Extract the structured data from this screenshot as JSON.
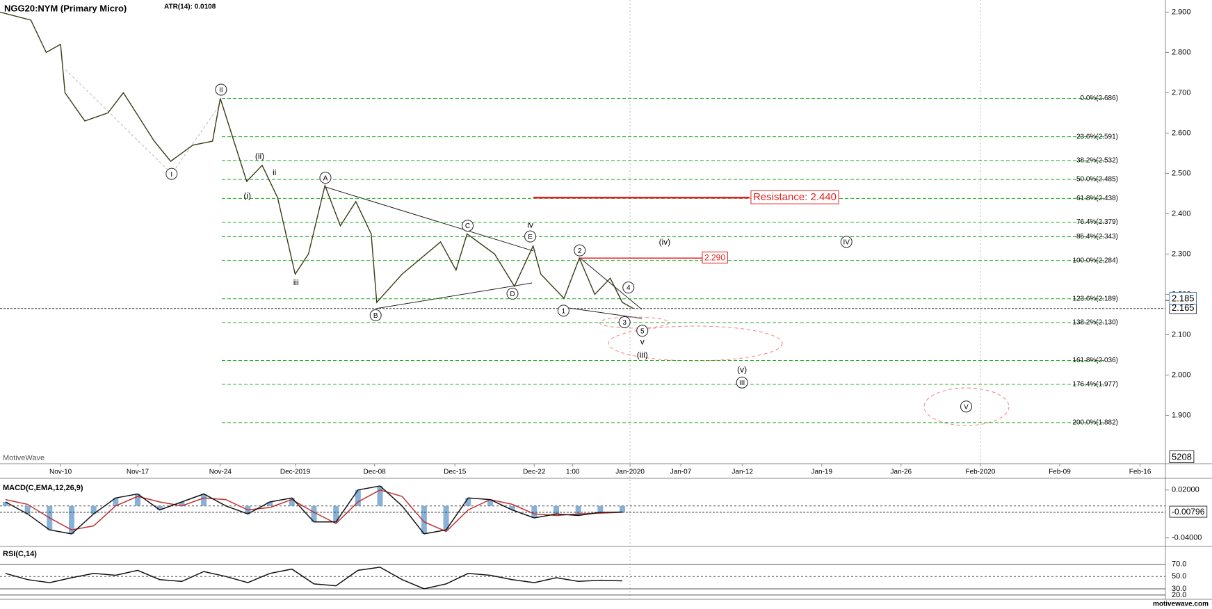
{
  "header": {
    "title": "NGG20:NYM (Primary Micro)",
    "atr": "ATR(14): 0.0108",
    "watermark": "MotiveWave",
    "footer": "motivewave.com"
  },
  "price_chart": {
    "type": "line",
    "color": "#3a3a14",
    "xlim": [
      -5.5,
      100.3
    ],
    "ylim": [
      1.78,
      2.93
    ],
    "xticks": [
      {
        "value": 0,
        "label": "Nov-10"
      },
      {
        "value": 7.0,
        "label": "Nov-17"
      },
      {
        "value": 14.5,
        "label": "Nov-24"
      },
      {
        "value": 21.3,
        "label": "Dec-2019"
      },
      {
        "value": 28.5,
        "label": "Dec-08"
      },
      {
        "value": 35.8,
        "label": "Dec-15"
      },
      {
        "value": 43.0,
        "label": "Dec-22"
      },
      {
        "value": 46.5,
        "label": "1:00"
      },
      {
        "value": 51.7,
        "label": "Jan-2020"
      },
      {
        "value": 56.3,
        "label": "Jan-07"
      },
      {
        "value": 61.9,
        "label": "Jan-12"
      },
      {
        "value": 69.1,
        "label": "Jan-19"
      },
      {
        "value": 76.3,
        "label": "Jan-26"
      },
      {
        "value": 83.5,
        "label": "Feb-2020"
      },
      {
        "value": 90.7,
        "label": "Feb-09"
      },
      {
        "value": 98.0,
        "label": "Feb-16"
      }
    ],
    "yticks": [
      {
        "value": 2.9,
        "label": "2.900"
      },
      {
        "value": 2.8,
        "label": "2.800"
      },
      {
        "value": 2.7,
        "label": "2.700"
      },
      {
        "value": 2.6,
        "label": "2.600"
      },
      {
        "value": 2.5,
        "label": "2.500"
      },
      {
        "value": 2.4,
        "label": "2.400"
      },
      {
        "value": 2.3,
        "label": "2.300"
      },
      {
        "value": 2.2,
        "label": "2.200"
      },
      {
        "value": 2.1,
        "label": "2.100"
      },
      {
        "value": 2.0,
        "label": "2.000"
      },
      {
        "value": 1.9,
        "label": "1.900"
      }
    ],
    "x": [
      -5.5,
      -2.7,
      -1.3,
      0,
      0.4,
      2.2,
      4.3,
      5.7,
      8.5,
      10.0,
      12.0,
      13.8,
      14.5,
      15.5,
      16.9,
      18.3,
      19.7,
      21.3,
      22.5,
      24.0,
      25.4,
      26.8,
      28.2,
      28.7,
      31.0,
      34.5,
      35.9,
      36.9,
      39.4,
      41.2,
      42.9,
      43.6,
      45.7,
      47.1,
      48.5,
      49.9,
      51.0,
      52.0
    ],
    "values": [
      2.9,
      2.88,
      2.8,
      2.82,
      2.7,
      2.63,
      2.65,
      2.7,
      2.58,
      2.53,
      2.57,
      2.58,
      2.686,
      2.6,
      2.48,
      2.52,
      2.44,
      2.25,
      2.3,
      2.47,
      2.37,
      2.43,
      2.35,
      2.18,
      2.25,
      2.33,
      2.26,
      2.35,
      2.3,
      2.22,
      2.32,
      2.25,
      2.19,
      2.29,
      2.2,
      2.24,
      2.18,
      2.165
    ],
    "last_price": {
      "value": 2.165,
      "label": "2.165"
    },
    "ask_price": {
      "value": 2.185,
      "label": "2.185"
    },
    "volume_label": "5208",
    "fib_color": "#22aa22",
    "fib_levels": [
      {
        "value": 2.686,
        "label": "0.0%(2.686)"
      },
      {
        "value": 2.591,
        "label": "23.6%(2.591)"
      },
      {
        "value": 2.532,
        "label": "38.2%(2.532)"
      },
      {
        "value": 2.485,
        "label": "50.0%(2.485)"
      },
      {
        "value": 2.438,
        "label": "61.8%(2.438)"
      },
      {
        "value": 2.379,
        "label": "76.4%(2.379)"
      },
      {
        "value": 2.343,
        "label": "85.4%(2.343)"
      },
      {
        "value": 2.284,
        "label": "100.0%(2.284)"
      },
      {
        "value": 2.189,
        "label": "123.6%(2.189)"
      },
      {
        "value": 2.13,
        "label": "138.2%(2.130)"
      },
      {
        "value": 2.036,
        "label": "161.8%(2.036)"
      },
      {
        "value": 1.977,
        "label": "176.4%(1.977)"
      },
      {
        "value": 1.882,
        "label": "200.0%(1.882)"
      }
    ],
    "resistance_color": "#e02020",
    "resistance": [
      {
        "value": 2.44,
        "label": "Resistance: 2.440"
      },
      {
        "value": 2.29,
        "label": "2.290"
      }
    ],
    "wave_labels": [
      {
        "text": "I",
        "circled": true
      },
      {
        "text": "II",
        "circled": true
      },
      {
        "text": "(ii)",
        "circled": false
      },
      {
        "text": "ii",
        "circled": false
      },
      {
        "text": "(i)",
        "circled": false
      },
      {
        "text": "iii",
        "circled": false
      },
      {
        "text": "A",
        "circled": true
      },
      {
        "text": "B",
        "circled": true
      },
      {
        "text": "C",
        "circled": true
      },
      {
        "text": "D",
        "circled": true
      },
      {
        "text": "iv",
        "circled": false
      },
      {
        "text": "E",
        "circled": true
      },
      {
        "text": "2",
        "circled": true
      },
      {
        "text": "1",
        "circled": true
      },
      {
        "text": "4",
        "circled": true
      },
      {
        "text": "3",
        "circled": true
      },
      {
        "text": "5",
        "circled": true
      },
      {
        "text": "v",
        "circled": false
      },
      {
        "text": "(iii)",
        "circled": false
      },
      {
        "text": "(iv)",
        "circled": false
      },
      {
        "text": "IV",
        "circled": true
      },
      {
        "text": "(v)",
        "circled": false
      },
      {
        "text": "III",
        "circled": true
      },
      {
        "text": "V",
        "circled": true
      }
    ]
  },
  "indicator_x": [
    -5,
    -3,
    -1,
    1,
    3,
    5,
    7,
    9,
    11,
    13,
    15,
    17,
    19,
    21,
    23,
    25,
    27,
    29,
    31,
    33,
    35,
    37,
    39,
    41,
    43,
    45,
    47,
    49,
    51
  ],
  "macd": {
    "label": "MACD(C,EMA,12,26,9)",
    "ylim": [
      -0.049,
      0.032
    ],
    "yticks": [
      {
        "value": 0.02,
        "label": "0.02000"
      },
      {
        "value": -0.04,
        "label": "-0.04000"
      }
    ],
    "last": {
      "value": -0.00796,
      "label": "-0.00796"
    },
    "values": [
      0.005,
      -0.01,
      -0.03,
      -0.035,
      -0.01,
      0.01,
      0.015,
      -0.005,
      0.005,
      0.015,
      0,
      -0.01,
      0.005,
      0.01,
      -0.02,
      -0.02,
      0.02,
      0.025,
      0,
      -0.035,
      -0.03,
      0.01,
      0.008,
      -0.005,
      -0.015,
      -0.01,
      -0.012,
      -0.008,
      -0.0076
    ],
    "signal": [
      0.008,
      0.002,
      -0.015,
      -0.03,
      -0.025,
      0,
      0.012,
      0.005,
      0,
      0.01,
      0.008,
      -0.005,
      -0.002,
      0.008,
      -0.008,
      -0.022,
      0.005,
      0.02,
      0.012,
      -0.02,
      -0.032,
      -0.005,
      0.008,
      0.002,
      -0.01,
      -0.012,
      -0.01,
      -0.009,
      -0.008
    ]
  },
  "rsi": {
    "label": "RSI(C,14)",
    "ylim": [
      13.1,
      97.6
    ],
    "yticks": [
      {
        "value": 70,
        "label": "70.0"
      },
      {
        "value": 50,
        "label": "50.0"
      },
      {
        "value": 30,
        "label": "30.0"
      },
      {
        "value": 20,
        "label": "20.0"
      }
    ],
    "values": [
      55,
      45,
      40,
      48,
      55,
      52,
      60,
      45,
      42,
      58,
      50,
      40,
      55,
      62,
      38,
      35,
      60,
      65,
      45,
      30,
      38,
      55,
      52,
      45,
      40,
      48,
      42,
      44,
      43
    ]
  }
}
